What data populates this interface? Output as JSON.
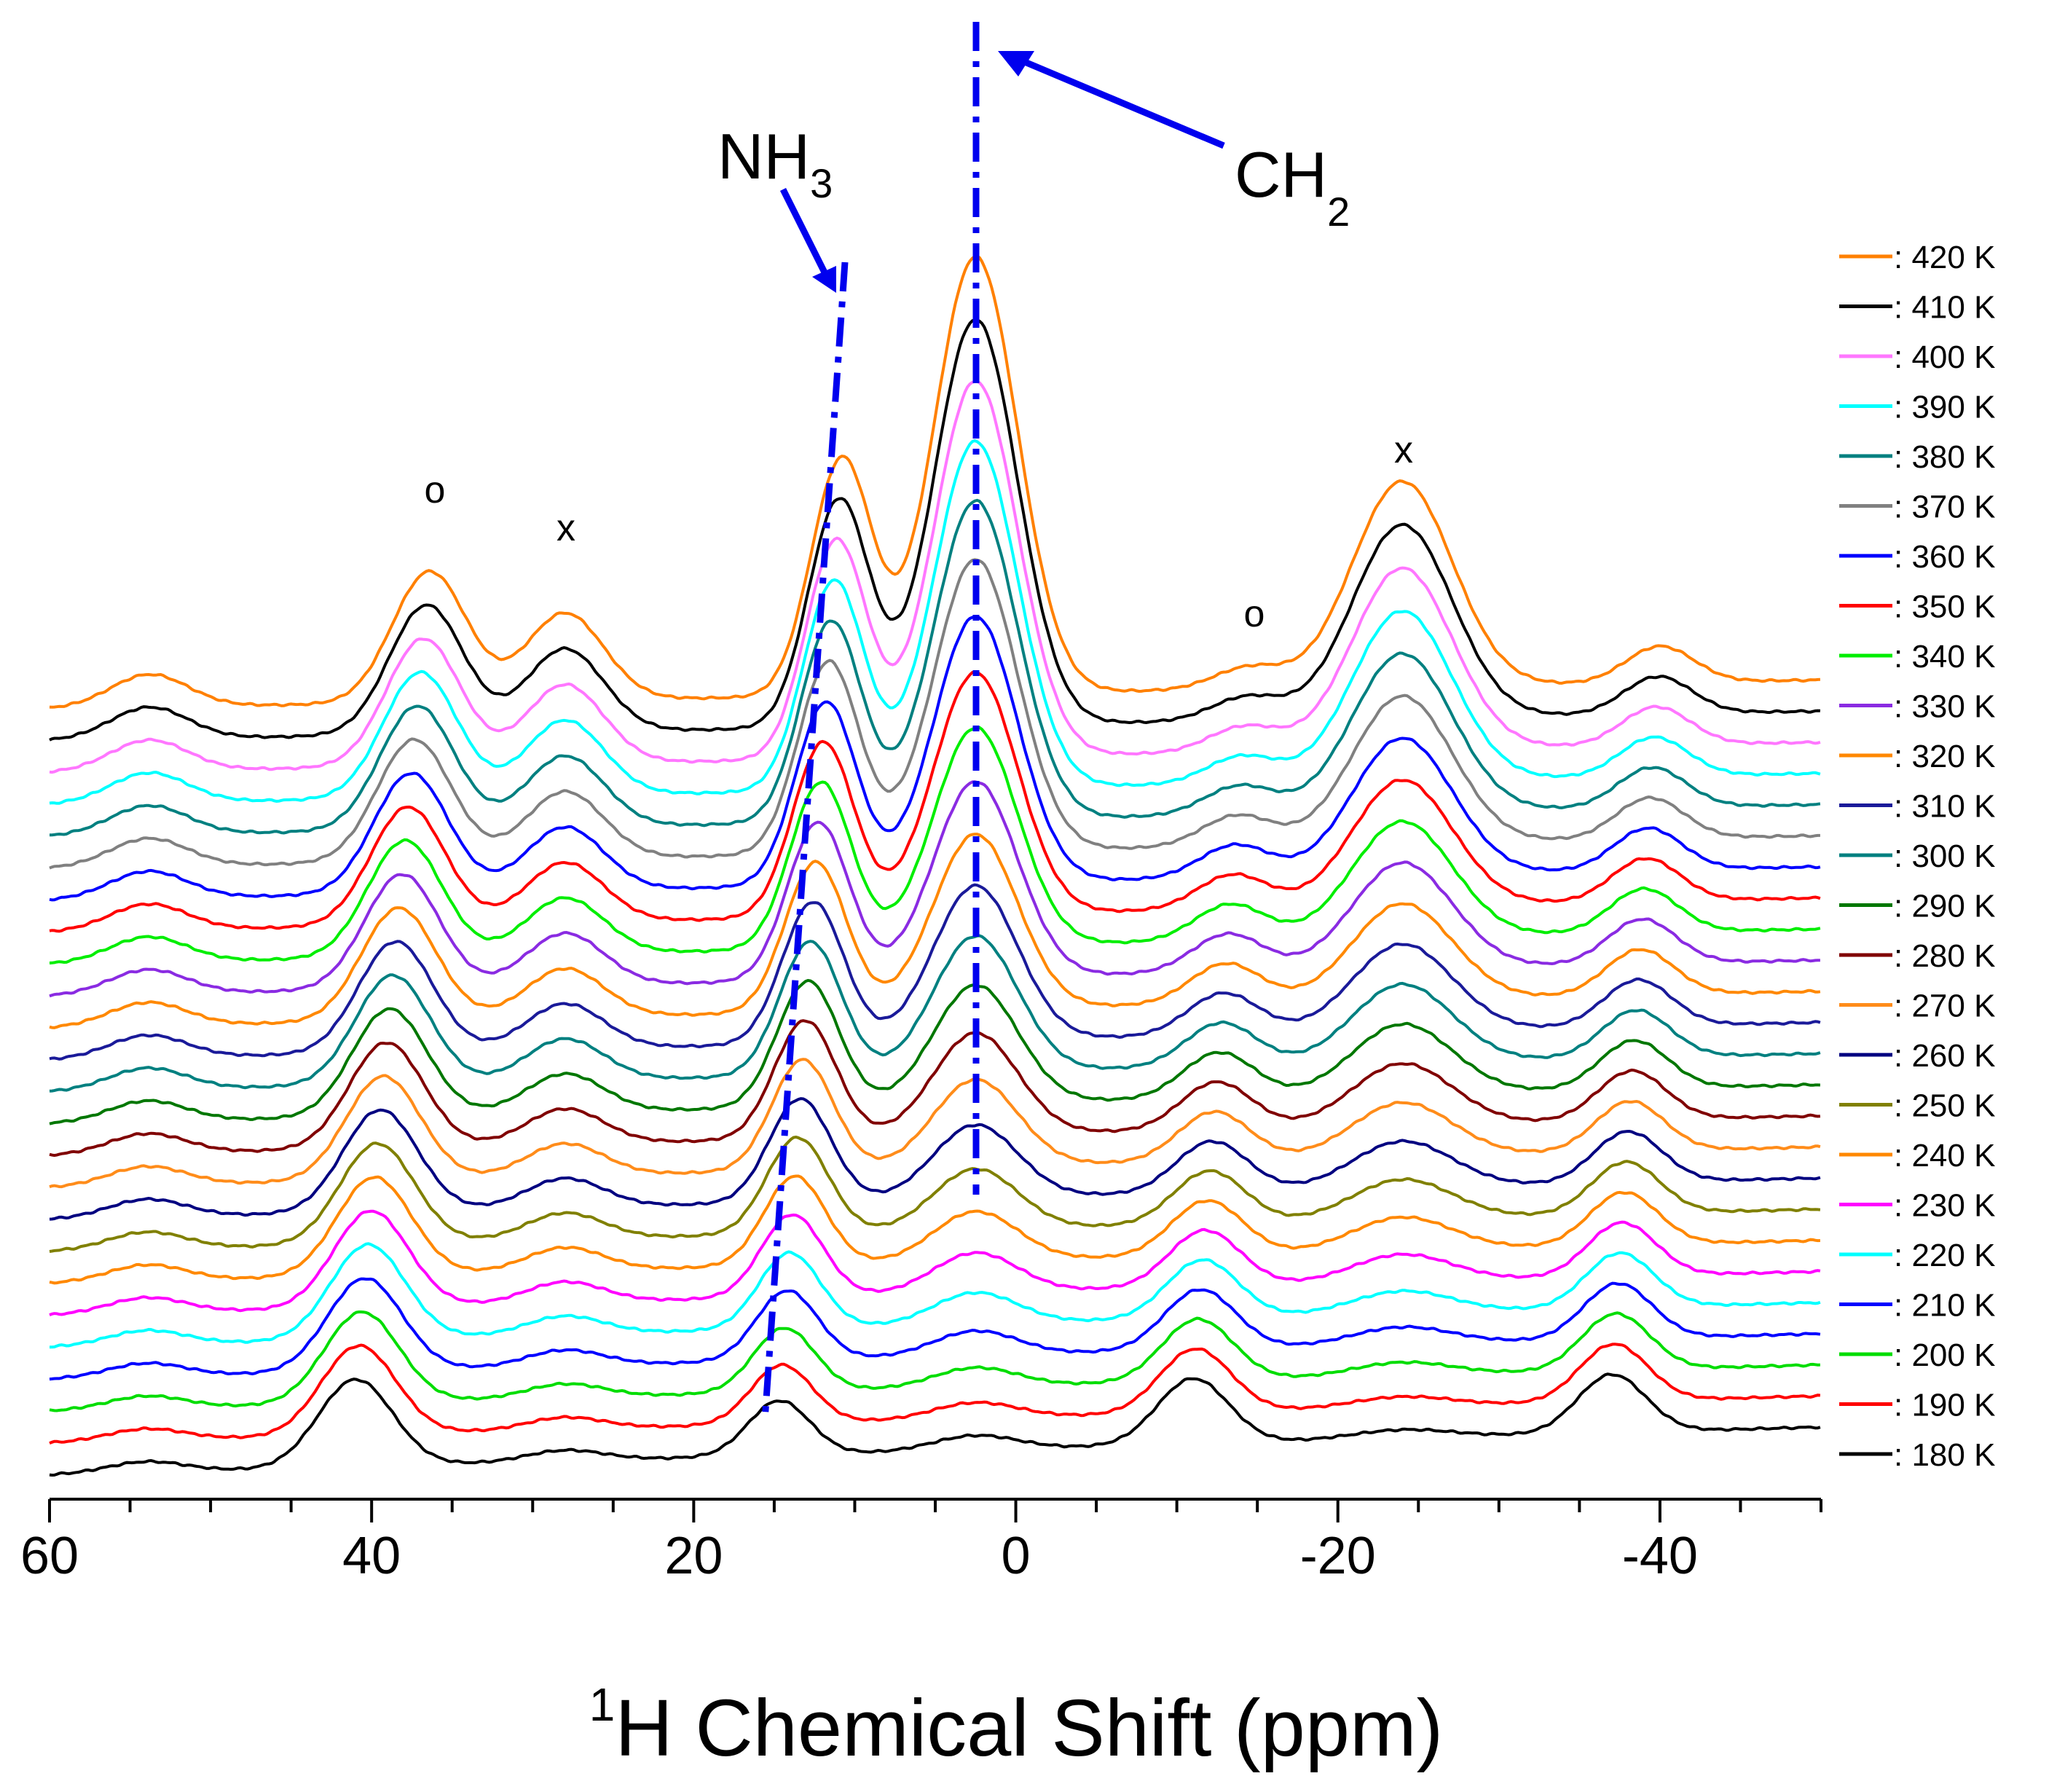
{
  "chart_data": {
    "type": "line",
    "title": "",
    "xlabel": "H Chemical Shift (ppm)",
    "xlabel_superscript": "1",
    "ylabel": "",
    "xlim": [
      60,
      -50
    ],
    "xticks": [
      60,
      40,
      20,
      0,
      -20,
      -40
    ],
    "xtick_labels": [
      "60",
      "40",
      "20",
      "0",
      "-20",
      "-40"
    ],
    "legend_position": "right",
    "series": [
      {
        "name": ": 180 K",
        "color": "#000000"
      },
      {
        "name": ": 190 K",
        "color": "#ff0000"
      },
      {
        "name": ": 200 K",
        "color": "#00dd00"
      },
      {
        "name": ": 210 K",
        "color": "#0000ff"
      },
      {
        "name": ": 220 K",
        "color": "#00ffff"
      },
      {
        "name": ": 230 K",
        "color": "#ff00ff"
      },
      {
        "name": ": 240 K",
        "color": "#ff8800"
      },
      {
        "name": ": 250 K",
        "color": "#808000"
      },
      {
        "name": ": 260 K",
        "color": "#000080"
      },
      {
        "name": ": 270 K",
        "color": "#ff8c1a"
      },
      {
        "name": ": 280 K",
        "color": "#800000"
      },
      {
        "name": ": 290 K",
        "color": "#007700"
      },
      {
        "name": ": 300 K",
        "color": "#008080"
      },
      {
        "name": ": 310 K",
        "color": "#1a1a99"
      },
      {
        "name": ": 320 K",
        "color": "#ff8800"
      },
      {
        "name": ": 330 K",
        "color": "#8a2be2"
      },
      {
        "name": ": 340 K",
        "color": "#00ee00"
      },
      {
        "name": ": 350 K",
        "color": "#ff0000"
      },
      {
        "name": ": 360 K",
        "color": "#0000ff"
      },
      {
        "name": ": 370 K",
        "color": "#808080"
      },
      {
        "name": ": 380 K",
        "color": "#008080"
      },
      {
        "name": ": 390 K",
        "color": "#00ffff"
      },
      {
        "name": ": 400 K",
        "color": "#ff77ff"
      },
      {
        "name": ": 410 K",
        "color": "#000000"
      },
      {
        "name": ": 420 K",
        "color": "#ff8000"
      }
    ],
    "annotations": [
      {
        "text": "NH",
        "subscript": "3"
      },
      {
        "text": "CH",
        "subscript": "2"
      },
      {
        "text": "o"
      },
      {
        "text": "x"
      },
      {
        "text": "o"
      },
      {
        "text": "x"
      }
    ]
  }
}
